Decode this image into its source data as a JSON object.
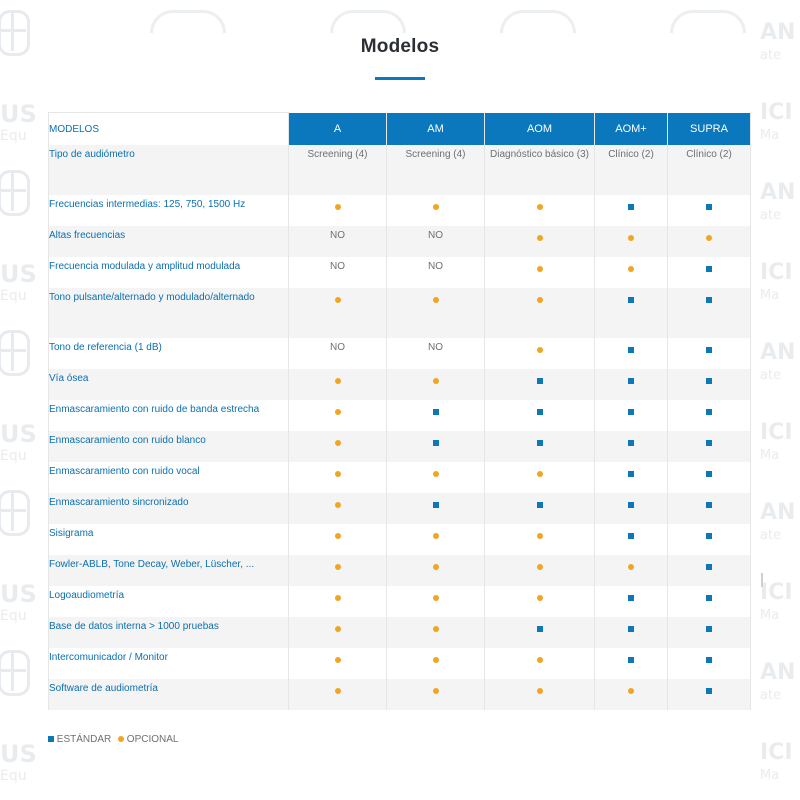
{
  "title": "Modelos",
  "table": {
    "header_label": "MODELOS",
    "models": [
      "A",
      "AM",
      "AOM",
      "AOM+",
      "SUPRA"
    ],
    "rows": [
      {
        "feature": "Tipo de audiómetro",
        "values": [
          "Screening (4)",
          "Screening (4)",
          "Diagnóstico básico (3)",
          "Clínico (2)",
          "Clínico (2)"
        ]
      },
      {
        "feature": "Frecuencias intermedias: 125, 750, 1500 Hz",
        "values": [
          "opcional",
          "opcional",
          "opcional",
          "estandar",
          "estandar"
        ]
      },
      {
        "feature": "Altas frecuencias",
        "values": [
          "NO",
          "NO",
          "opcional",
          "opcional",
          "opcional"
        ]
      },
      {
        "feature": "Frecuencia modulada y amplitud modulada",
        "values": [
          "NO",
          "NO",
          "opcional",
          "opcional",
          "estandar"
        ]
      },
      {
        "feature": "Tono pulsante/alternado y modulado/alternado",
        "values": [
          "opcional",
          "opcional",
          "opcional",
          "estandar",
          "estandar"
        ]
      },
      {
        "feature": "Tono de referencia (1 dB)",
        "values": [
          "NO",
          "NO",
          "opcional",
          "estandar",
          "estandar"
        ]
      },
      {
        "feature": "Vía ósea",
        "values": [
          "opcional",
          "opcional",
          "estandar",
          "estandar",
          "estandar"
        ]
      },
      {
        "feature": "Enmascaramiento con ruido de banda estrecha",
        "values": [
          "opcional",
          "estandar",
          "estandar",
          "estandar",
          "estandar"
        ]
      },
      {
        "feature": "Enmascaramiento con ruido blanco",
        "values": [
          "opcional",
          "estandar",
          "estandar",
          "estandar",
          "estandar"
        ]
      },
      {
        "feature": "Enmascaramiento con ruido vocal",
        "values": [
          "opcional",
          "opcional",
          "opcional",
          "estandar",
          "estandar"
        ]
      },
      {
        "feature": "Enmascaramiento sincronizado",
        "values": [
          "opcional",
          "estandar",
          "estandar",
          "estandar",
          "estandar"
        ]
      },
      {
        "feature": "Sisigrama",
        "values": [
          "opcional",
          "opcional",
          "opcional",
          "estandar",
          "estandar"
        ]
      },
      {
        "feature": "Fowler-ABLB, Tone Decay, Weber, Lüscher, ...",
        "values": [
          "opcional",
          "opcional",
          "opcional",
          "opcional",
          "estandar"
        ]
      },
      {
        "feature": "Logoaudiometría",
        "values": [
          "opcional",
          "opcional",
          "opcional",
          "estandar",
          "estandar"
        ]
      },
      {
        "feature": "Base de datos interna > 1000 pruebas",
        "values": [
          "opcional",
          "opcional",
          "estandar",
          "estandar",
          "estandar"
        ]
      },
      {
        "feature": "Intercomunicador / Monitor",
        "values": [
          "opcional",
          "opcional",
          "opcional",
          "estandar",
          "estandar"
        ]
      },
      {
        "feature": "Software de audiometría",
        "values": [
          "opcional",
          "opcional",
          "opcional",
          "opcional",
          "estandar"
        ]
      }
    ],
    "row_heights": [
      50,
      31,
      31,
      31,
      50,
      31,
      31,
      31,
      31,
      31,
      31,
      31,
      31,
      31,
      31,
      31,
      31
    ]
  },
  "legend": {
    "standard_label": "ESTÁNDAR",
    "optional_label": "OPCIONAL"
  },
  "colors": {
    "standard": "#0b78bd",
    "optional": "#f0a623",
    "feature_text": "#0b6fae"
  },
  "watermark": {
    "left_text": "US",
    "left_sub": "Equ",
    "right_text": "ICI",
    "right_text_alt": "AN",
    "right_sub": "Ma",
    "right_sub_alt": "ate"
  }
}
